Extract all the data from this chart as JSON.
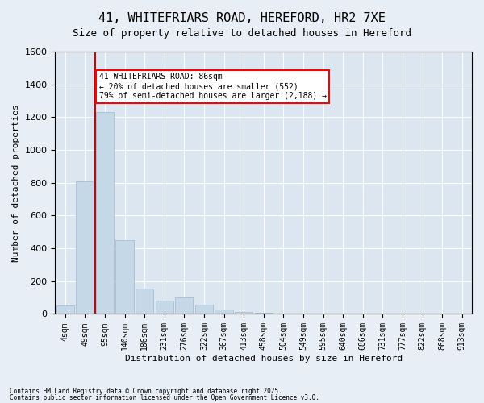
{
  "title": "41, WHITEFRIARS ROAD, HEREFORD, HR2 7XE",
  "subtitle": "Size of property relative to detached houses in Hereford",
  "xlabel": "Distribution of detached houses by size in Hereford",
  "ylabel": "Number of detached properties",
  "footer1": "Contains HM Land Registry data © Crown copyright and database right 2025.",
  "footer2": "Contains public sector information licensed under the Open Government Licence v3.0.",
  "categories": [
    "4sqm",
    "49sqm",
    "95sqm",
    "140sqm",
    "186sqm",
    "231sqm",
    "276sqm",
    "322sqm",
    "367sqm",
    "413sqm",
    "458sqm",
    "504sqm",
    "549sqm",
    "595sqm",
    "640sqm",
    "686sqm",
    "731sqm",
    "777sqm",
    "822sqm",
    "868sqm",
    "913sqm"
  ],
  "values": [
    50,
    810,
    1230,
    450,
    155,
    80,
    100,
    55,
    25,
    12,
    5,
    2,
    1,
    0,
    0,
    0,
    0,
    0,
    0,
    0,
    0
  ],
  "bar_color": "#c5d8e8",
  "bar_edge_color": "#a0b8cc",
  "highlight_index": 1,
  "vline_x": 1.5,
  "annotation_text": "41 WHITEFRIARS ROAD: 86sqm\n← 20% of detached houses are smaller (552)\n79% of semi-detached houses are larger (2,188) →",
  "annotation_box_color": "#ff0000",
  "vline_color": "#cc0000",
  "ylim": [
    0,
    1600
  ],
  "yticks": [
    0,
    200,
    400,
    600,
    800,
    1000,
    1200,
    1400,
    1600
  ],
  "background_color": "#e8eef5",
  "plot_background_color": "#dce6f0"
}
